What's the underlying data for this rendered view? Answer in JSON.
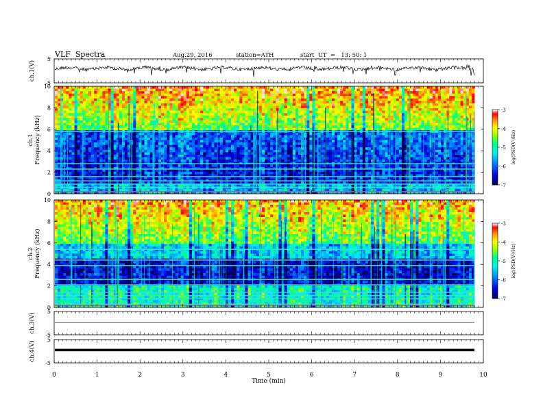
{
  "header": {
    "title": "VLF  Spectra",
    "date": "Aug.29, 2016",
    "station": "station=ATH",
    "start": "start  UT  =   13: 50: 1"
  },
  "colorbar": {
    "ticks": [
      "-3",
      "-4",
      "-5",
      "-6",
      "-7"
    ],
    "label": "log(PSD(V²/Hz)",
    "colors": [
      "#000080",
      "#0000ff",
      "#00a0ff",
      "#00ffff",
      "#00ff80",
      "#80ff00",
      "#ffff00",
      "#ff8000",
      "#ff0000",
      "#ffffff"
    ]
  },
  "chart_data": [
    {
      "type": "line",
      "ylabel": "ch.1(V)",
      "ylim": [
        -5,
        5
      ],
      "yticks": [
        "5",
        "-5"
      ],
      "xlim": [
        0,
        10
      ],
      "description_level": 0.6
    },
    {
      "type": "heatmap",
      "ylabel": "ch.1\nFrequency (kHz)",
      "ylabel_line1": "ch.1",
      "ylabel_line2": "Frequency  (kHz)",
      "ylim": [
        0,
        10
      ],
      "yticks": [
        "10",
        "8",
        "6",
        "4",
        "2",
        "0"
      ],
      "xlim": [
        0,
        9.8
      ],
      "zlim": [
        -7,
        -3
      ],
      "dominant_bands_khz": [
        0.2,
        0.6,
        0.9,
        1.2,
        1.6,
        2.3,
        2.8,
        5.8
      ]
    },
    {
      "type": "heatmap",
      "ylabel_line1": "ch.2",
      "ylabel_line2": "Frequency  (kHz)",
      "ylim": [
        0,
        10
      ],
      "yticks": [
        "10",
        "8",
        "6",
        "4",
        "2",
        "0"
      ],
      "xlim": [
        0,
        9.8
      ],
      "zlim": [
        -7,
        -3
      ],
      "dominant_bands_khz": [
        0.3,
        0.8,
        1.1,
        1.4,
        2.1,
        2.6,
        3.9,
        4.4,
        5.4
      ]
    },
    {
      "type": "line",
      "ylabel": "ch.3(V)",
      "ylim": [
        -5,
        5
      ],
      "yticks": [
        "5",
        "-5"
      ],
      "level": 0.0
    },
    {
      "type": "line",
      "ylabel": "ch.4(V)",
      "ylim": [
        -5,
        5
      ],
      "yticks": [
        "5",
        "-5"
      ],
      "level": 0.0
    }
  ],
  "xaxis": {
    "label": "Time  (min)",
    "ticks": [
      "0",
      "1",
      "2",
      "3",
      "4",
      "5",
      "6",
      "7",
      "8",
      "9",
      "10"
    ]
  }
}
